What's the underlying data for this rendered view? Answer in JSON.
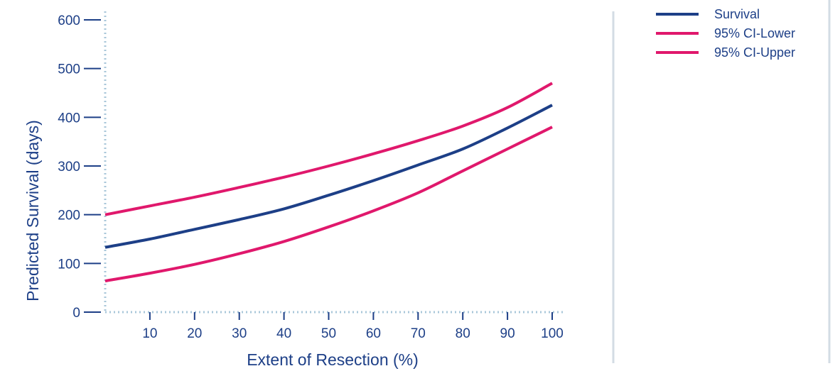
{
  "chart_data": {
    "type": "line",
    "xlabel": "Extent of Resection (%)",
    "ylabel": "Predicted Survival (days)",
    "xlim": [
      0,
      100
    ],
    "ylim": [
      0,
      600
    ],
    "x_ticks": [
      "10",
      "20",
      "30",
      "40",
      "50",
      "60",
      "70",
      "80",
      "90",
      "100"
    ],
    "y_ticks": [
      "0",
      "100",
      "200",
      "300",
      "400",
      "500",
      "600"
    ],
    "x": [
      0,
      10,
      20,
      30,
      40,
      50,
      60,
      70,
      80,
      90,
      100
    ],
    "series": [
      {
        "name": "Survival",
        "color": "#1d3f87",
        "values": [
          133,
          150,
          170,
          190,
          212,
          240,
          270,
          302,
          335,
          378,
          425
        ]
      },
      {
        "name": "95% CI-Lower",
        "color": "#e0186c",
        "values": [
          64,
          80,
          98,
          120,
          145,
          175,
          208,
          245,
          290,
          335,
          380
        ]
      },
      {
        "name": "95% CI-Upper",
        "color": "#e0186c",
        "values": [
          200,
          218,
          236,
          256,
          277,
          300,
          325,
          352,
          382,
          420,
          470
        ]
      }
    ],
    "legend_position": "top-right",
    "grid": false
  }
}
